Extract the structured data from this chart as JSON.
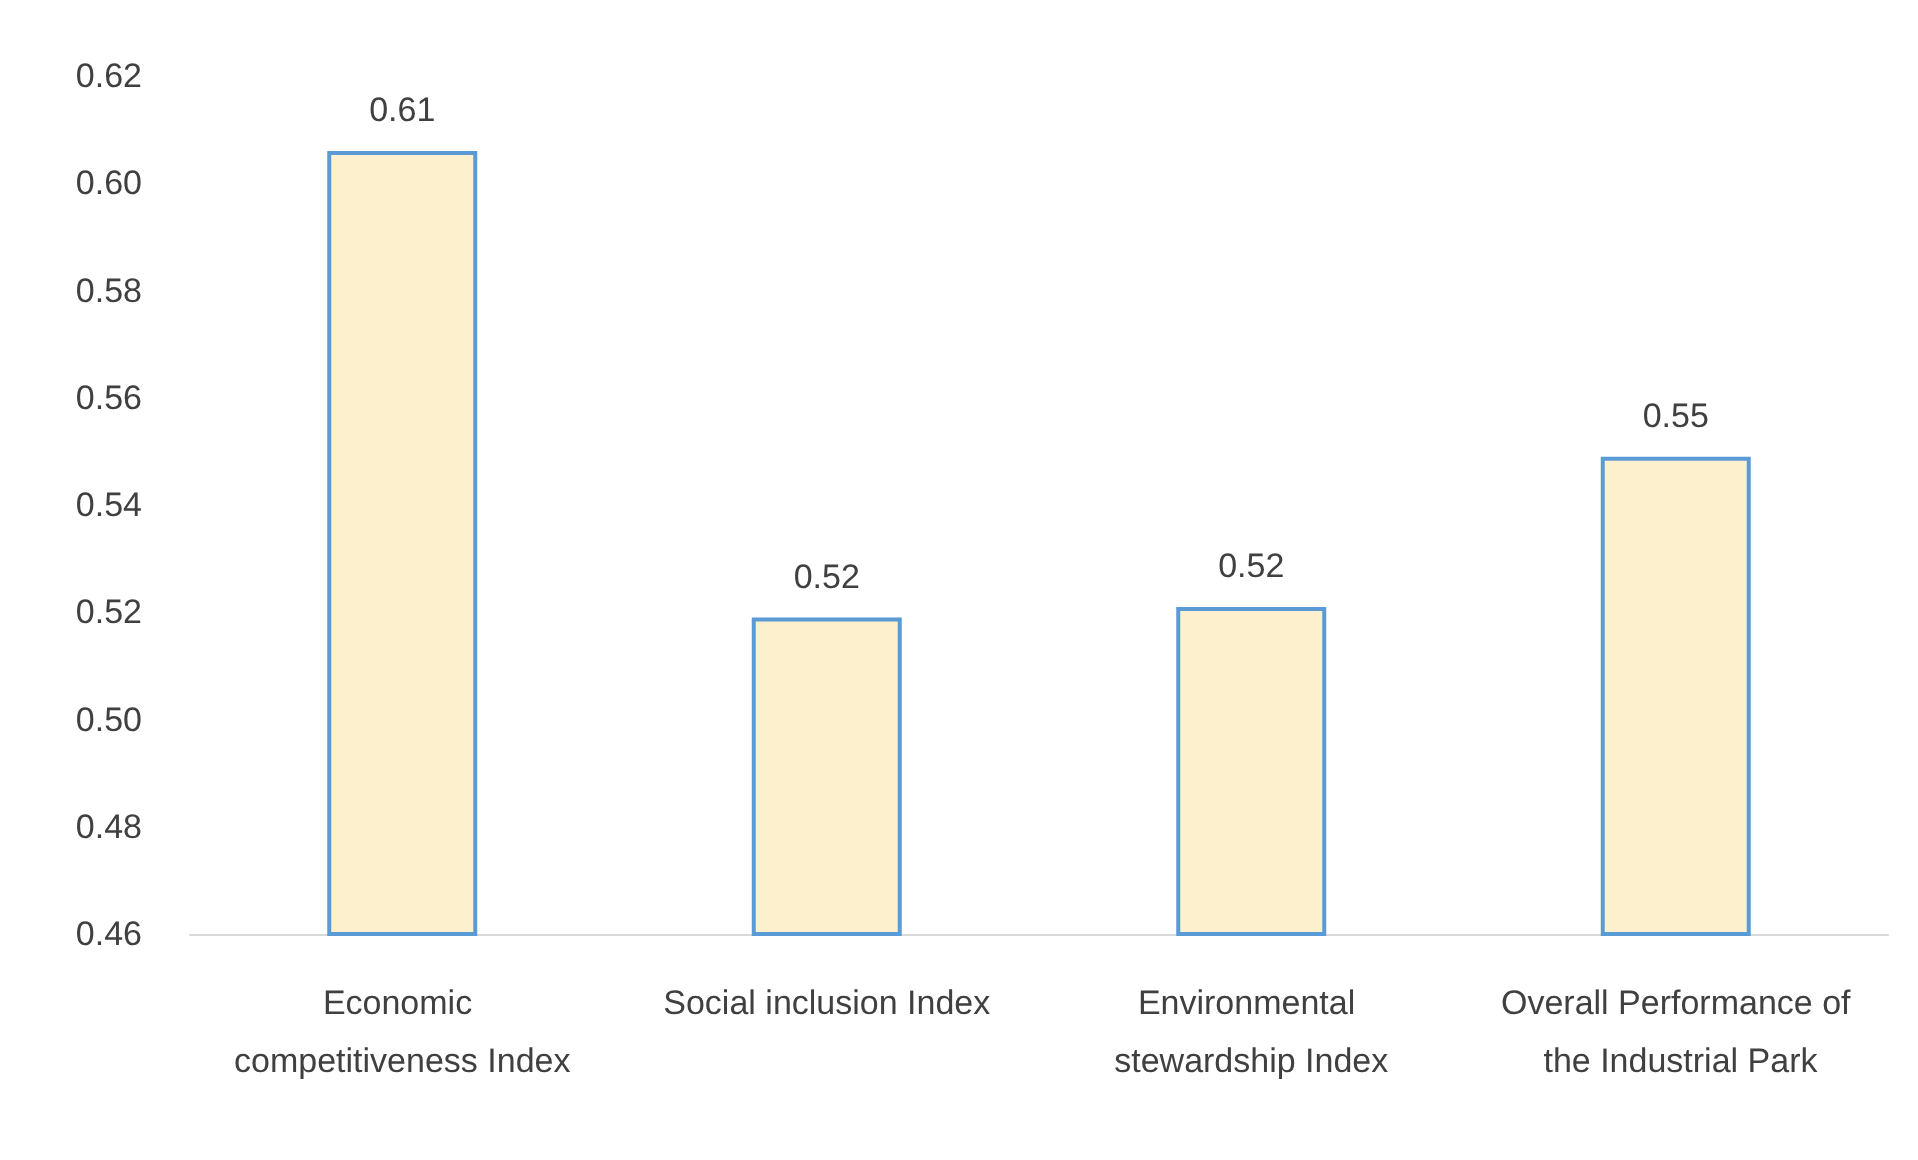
{
  "chart_data": {
    "type": "bar",
    "categories": [
      "Economic competitiveness Index",
      "Social inclusion Index",
      "Environmental stewardship Index",
      "Overall Performance of the Industrial Park"
    ],
    "values": [
      0.606,
      0.519,
      0.521,
      0.549
    ],
    "value_labels": [
      "0.61",
      "0.52",
      "0.52",
      "0.55"
    ],
    "color": "#fdf0cd",
    "ylim": [
      0.46,
      0.62
    ],
    "yticks": [
      0.46,
      0.48,
      {
        "value": 0.5,
        "label": "0.50"
      },
      0.52,
      0.54,
      0.56,
      0.58,
      {
        "value": 0.6,
        "label": "0.60"
      },
      0.62
    ],
    "grid": false
  }
}
